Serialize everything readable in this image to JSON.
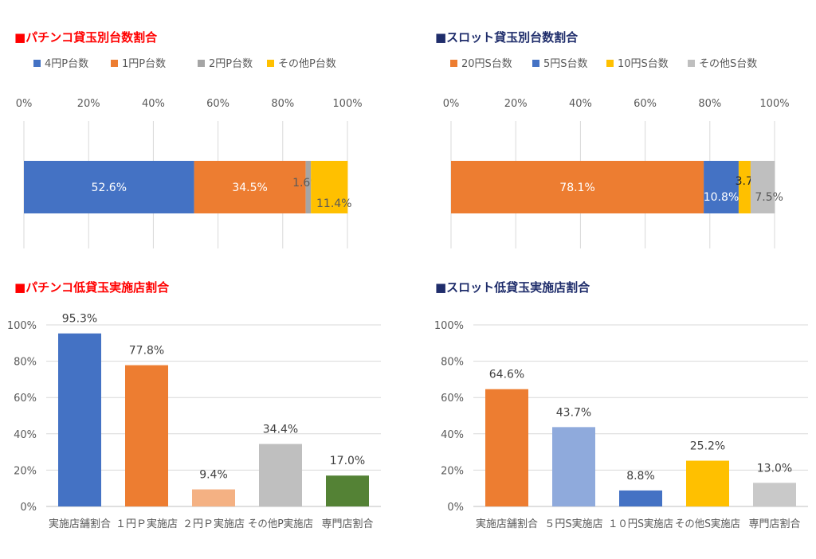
{
  "chart_data": [
    {
      "type": "bar",
      "orientation": "horizontal-stacked-100",
      "title": "■パチンコ貸玉別台数割合",
      "title_color": "#ff0000",
      "xlim": [
        0,
        100
      ],
      "x_ticks": [
        "0%",
        "20%",
        "40%",
        "60%",
        "80%",
        "100%"
      ],
      "legend_position": "top",
      "series": [
        {
          "name": "4円P台数",
          "value": 52.6,
          "label": "52.6%",
          "color": "#4472c4",
          "label_color": "#ffffff"
        },
        {
          "name": "1円P台数",
          "value": 34.5,
          "label": "34.5%",
          "color": "#ed7d31",
          "label_color": "#ffffff"
        },
        {
          "name": "2円P台数",
          "value": 1.6,
          "label": "1.6%",
          "color": "#a5a5a5",
          "label_color": "#595959"
        },
        {
          "name": "その他P台数",
          "value": 11.4,
          "label": "11.4%",
          "color": "#ffc000",
          "label_color": "#595959"
        }
      ]
    },
    {
      "type": "bar",
      "orientation": "horizontal-stacked-100",
      "title": "■スロット貸玉別台数割合",
      "title_color": "#1f2d6b",
      "xlim": [
        0,
        100
      ],
      "x_ticks": [
        "0%",
        "20%",
        "40%",
        "60%",
        "80%",
        "100%"
      ],
      "legend_position": "top",
      "series": [
        {
          "name": "20円S台数",
          "value": 78.1,
          "label": "78.1%",
          "color": "#ed7d31",
          "label_color": "#ffffff"
        },
        {
          "name": "5円S台数",
          "value": 10.8,
          "label": "10.8%",
          "color": "#4472c4",
          "label_color": "#ffffff"
        },
        {
          "name": "10円S台数",
          "value": 3.7,
          "label": "3.7%",
          "color": "#ffc000",
          "label_color": "#262626"
        },
        {
          "name": "その他S台数",
          "value": 7.5,
          "label": "7.5%",
          "color": "#bfbfbf",
          "label_color": "#595959"
        }
      ]
    },
    {
      "type": "bar",
      "title": "■パチンコ低貸玉実施店割合",
      "title_color": "#ff0000",
      "ylim": [
        0,
        100
      ],
      "y_ticks": [
        "100%",
        "80%",
        "60%",
        "40%",
        "20%",
        "0%"
      ],
      "categories": [
        "実施店舗割合",
        "１円Ｐ実施店",
        "２円Ｐ実施店",
        "その他P実施店",
        "専門店割合"
      ],
      "values": [
        95.3,
        77.8,
        9.4,
        34.4,
        17.0
      ],
      "labels": [
        "95.3%",
        "77.8%",
        "9.4%",
        "34.4%",
        "17.0%"
      ],
      "colors": [
        "#4472c4",
        "#ed7d31",
        "#f4b183",
        "#bfbfbf",
        "#548235"
      ]
    },
    {
      "type": "bar",
      "title": "■スロット低貸玉実施店割合",
      "title_color": "#1f2d6b",
      "ylim": [
        0,
        100
      ],
      "y_ticks": [
        "100%",
        "80%",
        "60%",
        "40%",
        "20%",
        "0%"
      ],
      "categories": [
        "実施店舗割合",
        "５円S実施店",
        "１０円S実施店",
        "その他S実施店",
        "専門店割合"
      ],
      "values": [
        64.6,
        43.7,
        8.8,
        25.2,
        13.0
      ],
      "labels": [
        "64.6%",
        "43.7%",
        "8.8%",
        "25.2%",
        "13.0%"
      ],
      "colors": [
        "#ed7d31",
        "#8faadc",
        "#4472c4",
        "#ffc000",
        "#c9c9c9"
      ]
    }
  ]
}
